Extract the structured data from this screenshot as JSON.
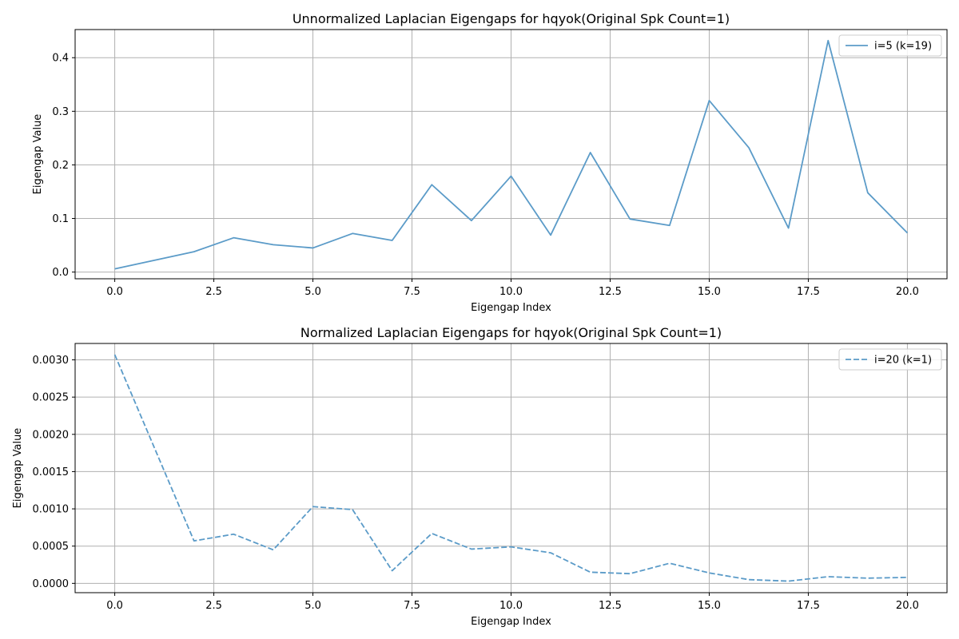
{
  "colors": {
    "series": "#5b9bc8",
    "grid": "#b0b0b0",
    "axes": "#000000",
    "legend_border": "#cccccc"
  },
  "chart_data": [
    {
      "type": "line",
      "title": "Unnormalized Laplacian Eigengaps for hqyok(Original Spk Count=1)",
      "xlabel": "Eigengap Index",
      "ylabel": "Eigengap Value",
      "xlim": [
        -1.0,
        21.0
      ],
      "ylim": [
        -0.0125,
        0.4525
      ],
      "xticks": [
        0,
        2.5,
        5,
        7.5,
        10,
        12.5,
        15,
        17.5,
        20
      ],
      "xtick_labels": [
        "0.0",
        "2.5",
        "5.0",
        "7.5",
        "10.0",
        "12.5",
        "15.0",
        "17.5",
        "20.0"
      ],
      "yticks": [
        0,
        0.1,
        0.2,
        0.3,
        0.4
      ],
      "ytick_labels": [
        "0.0",
        "0.1",
        "0.2",
        "0.3",
        "0.4"
      ],
      "grid": true,
      "legend_position": "top-right",
      "series": [
        {
          "name": "i=5 (k=19)",
          "linestyle": "solid",
          "x": [
            0,
            2,
            3,
            4,
            5,
            6,
            7,
            8,
            9,
            10,
            11,
            12,
            13,
            14,
            15,
            16,
            17,
            18,
            19,
            20
          ],
          "values": [
            0.006,
            0.038,
            0.064,
            0.051,
            0.045,
            0.072,
            0.059,
            0.163,
            0.096,
            0.179,
            0.069,
            0.223,
            0.099,
            0.087,
            0.32,
            0.232,
            0.082,
            0.432,
            0.148,
            0.073
          ]
        }
      ]
    },
    {
      "type": "line",
      "title": "Normalized Laplacian Eigengaps for hqyok(Original Spk Count=1)",
      "xlabel": "Eigengap Index",
      "ylabel": "Eigengap Value",
      "xlim": [
        -1.0,
        21.0
      ],
      "ylim": [
        -0.000125,
        0.00322
      ],
      "xticks": [
        0,
        2.5,
        5,
        7.5,
        10,
        12.5,
        15,
        17.5,
        20
      ],
      "xtick_labels": [
        "0.0",
        "2.5",
        "5.0",
        "7.5",
        "10.0",
        "12.5",
        "15.0",
        "17.5",
        "20.0"
      ],
      "yticks": [
        0,
        0.0005,
        0.001,
        0.0015,
        0.002,
        0.0025,
        0.003
      ],
      "ytick_labels": [
        "0.0000",
        "0.0005",
        "0.0010",
        "0.0015",
        "0.0020",
        "0.0025",
        "0.0030"
      ],
      "grid": true,
      "legend_position": "top-right",
      "series": [
        {
          "name": "i=20 (k=1)",
          "linestyle": "dashed",
          "x": [
            0,
            2,
            3,
            4,
            5,
            6,
            7,
            8,
            9,
            10,
            11,
            12,
            13,
            14,
            15,
            16,
            17,
            18,
            19,
            20
          ],
          "values": [
            0.00307,
            0.00057,
            0.00066,
            0.00045,
            0.00103,
            0.00099,
            0.00017,
            0.00067,
            0.00046,
            0.00049,
            0.00041,
            0.00015,
            0.00013,
            0.00027,
            0.00014,
            5e-05,
            3e-05,
            9e-05,
            7e-05,
            8e-05
          ]
        }
      ]
    }
  ]
}
